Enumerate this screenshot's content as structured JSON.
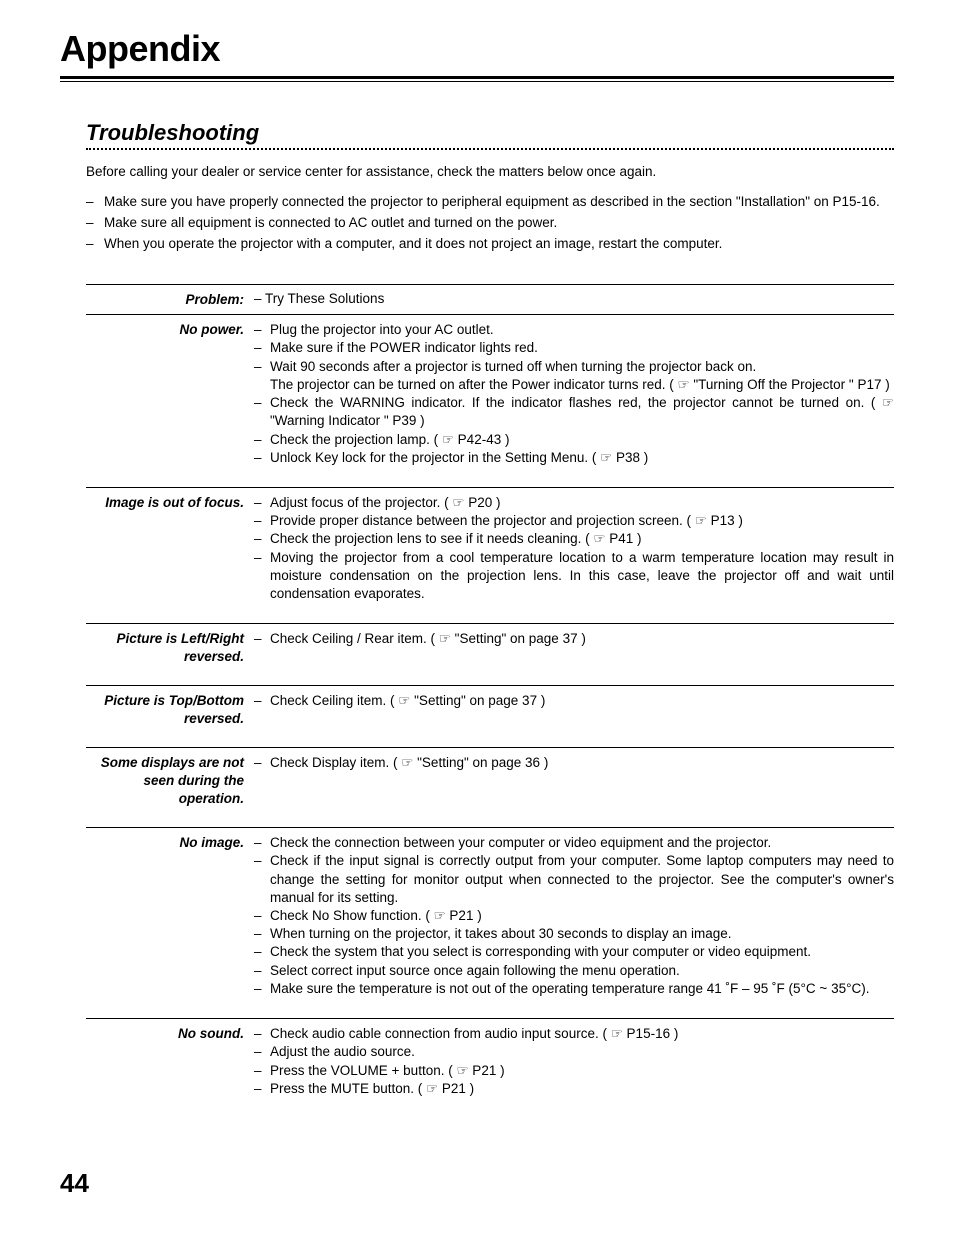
{
  "ref_icon": "☞",
  "chapter_title": "Appendix",
  "section_title": "Troubleshooting",
  "intro": "Before calling your dealer or service center for assistance, check the matters below once again.",
  "pre_list": [
    "Make sure you have properly connected the projector to peripheral equipment as described in the section \"Installation\" on P15-16.",
    "Make sure all equipment is connected to AC outlet and turned on the power.",
    "When you operate the projector with a computer, and it does not project an image, restart the computer."
  ],
  "header_row": {
    "label": "Problem:",
    "body": "– Try These Solutions"
  },
  "rows": [
    {
      "label": "No power.",
      "solutions": [
        {
          "t": "Plug the projector into your AC outlet."
        },
        {
          "t": "Make sure if the POWER indicator lights red."
        },
        {
          "t": "Wait 90 seconds after a projector is turned off when turning the projector back on.",
          "cont": "The projector can be turned on after the Power indicator turns red.  ( ☞ \"Turning Off the Projector \" P17   )"
        },
        {
          "t": "Check the WARNING indicator.  If the indicator flashes red, the projector cannot be turned on.  ( ☞ \"Warning Indicator \" P39 )"
        },
        {
          "t": "Check the projection lamp.  ( ☞ P42-43 )"
        },
        {
          "t": "Unlock Key lock for the projector in the Setting Menu.  ( ☞ P38 )"
        }
      ]
    },
    {
      "label": "Image is out of focus.",
      "solutions": [
        {
          "t": "Adjust focus of the projector.  ( ☞ P20 )"
        },
        {
          "t": "Provide proper distance between the projector and projection screen.  ( ☞ P13 )"
        },
        {
          "t": "Check the projection lens to see if it needs cleaning.  ( ☞ P41 )"
        },
        {
          "t": "Moving the projector from a cool temperature location to a warm temperature location may result in moisture condensation on the projection lens.  In this case, leave the projector off and wait until condensation evaporates."
        }
      ]
    },
    {
      "label": "Picture is Left/Right reversed.",
      "solutions": [
        {
          "t": "Check Ceiling / Rear item.  ( ☞ \"Setting\" on page 37 )"
        }
      ]
    },
    {
      "label": "Picture is Top/Bottom reversed.",
      "solutions": [
        {
          "t": "Check Ceiling item.  ( ☞ \"Setting\" on page 37 )"
        }
      ]
    },
    {
      "label": "Some displays are not seen during the operation.",
      "solutions": [
        {
          "t": "Check Display item.  ( ☞ \"Setting\" on page 36 )"
        }
      ]
    },
    {
      "label": "No image.",
      "solutions": [
        {
          "t": "Check the connection between your computer or video equipment and the projector."
        },
        {
          "t": "Check if the input signal is correctly output from your computer. Some laptop computers may need to change the setting for monitor output when connected to the projector. See the computer's owner's manual for its setting."
        },
        {
          "t": "Check No Show function.  ( ☞ P21 )"
        },
        {
          "t": "When turning on the projector, it takes about 30 seconds to display an image."
        },
        {
          "t": "Check the system that you select is corresponding with your computer or video equipment."
        },
        {
          "t": "Select correct input source once again following the menu operation."
        },
        {
          "t": "Make sure the temperature is not out of the operating temperature range  41 ˚F – 95 ˚F (5°C ~ 35°C)."
        }
      ]
    },
    {
      "label": "No sound.",
      "solutions": [
        {
          "t": "Check audio cable connection from audio input source.  ( ☞ P15-16 )"
        },
        {
          "t": "Adjust the audio source."
        },
        {
          "t": "Press the VOLUME + button.  ( ☞ P21 )"
        },
        {
          "t": "Press the MUTE button.  ( ☞ P21 )"
        }
      ]
    }
  ],
  "page_number": "44"
}
